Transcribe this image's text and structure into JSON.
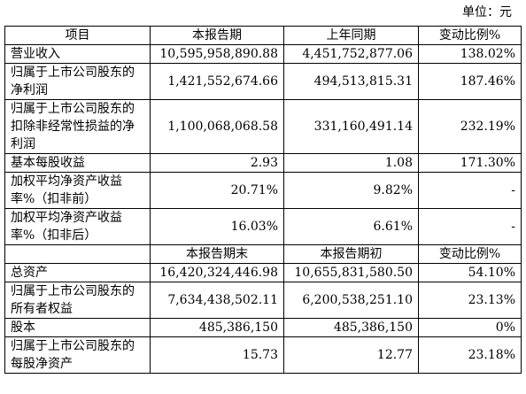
{
  "unit_label": "单位：元",
  "header": {
    "item": "项目",
    "current": "本报告期",
    "prior": "上年同期",
    "change": "变动比例%"
  },
  "rows1": [
    {
      "label": "营业收入",
      "current": "10,595,958,890.88",
      "prior": "4,451,752,877.06",
      "change": "138.02%"
    },
    {
      "label": "归属于上市公司股东的净利润",
      "current": "1,421,552,674.66",
      "prior": "494,513,815.31",
      "change": "187.46%"
    },
    {
      "label": "归属于上市公司股东的扣除非经常性损益的净利润",
      "current": "1,100,068,068.58",
      "prior": "331,160,491.14",
      "change": "232.19%"
    },
    {
      "label": "基本每股收益",
      "current": "2.93",
      "prior": "1.08",
      "change": "171.30%"
    },
    {
      "label": "加权平均净资产收益率%（扣非前）",
      "current": "20.71%",
      "prior": "9.82%",
      "change": "-"
    },
    {
      "label": "加权平均净资产收益率%（扣非后）",
      "current": "16.03%",
      "prior": "6.61%",
      "change": "-"
    }
  ],
  "header2": {
    "item": "",
    "current": "本报告期末",
    "prior": "本报告期初",
    "change": "变动比例%"
  },
  "rows2": [
    {
      "label": "总资产",
      "current": "16,420,324,446.98",
      "prior": "10,655,831,580.50",
      "change": "54.10%"
    },
    {
      "label": "归属于上市公司股东的所有者权益",
      "current": "7,634,438,502.11",
      "prior": "6,200,538,251.10",
      "change": "23.13%"
    },
    {
      "label": "股本",
      "current": "485,386,150",
      "prior": "485,386,150",
      "change": "0%"
    },
    {
      "label": "归属于上市公司股东的每股净资产",
      "current": "15.73",
      "prior": "12.77",
      "change": "23.18%"
    }
  ]
}
